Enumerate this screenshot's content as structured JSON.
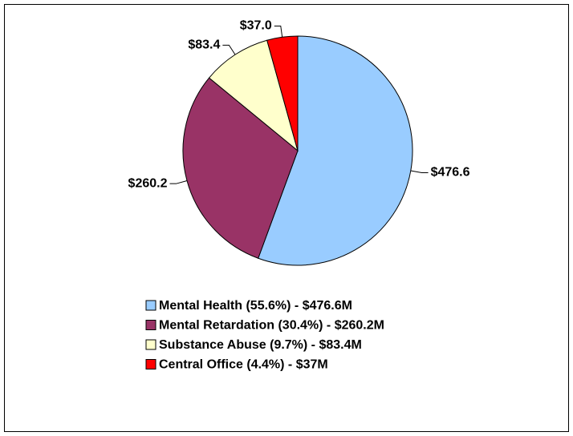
{
  "chart_data": {
    "type": "pie",
    "categories": [
      "Mental Health (55.6%) - $476.6M",
      "Mental Retardation (30.4%) - $260.2M",
      "Substance Abuse (9.7%) - $83.4M",
      "Central Office (4.4%) - $37M"
    ],
    "values": [
      476.6,
      260.2,
      83.4,
      37.0
    ],
    "value_labels": [
      "$476.6",
      "$260.2",
      "$83.4",
      "$37.0"
    ],
    "colors": [
      "#99ccff",
      "#993366",
      "#ffffcc",
      "#ff0000"
    ],
    "legend": "bottom"
  }
}
